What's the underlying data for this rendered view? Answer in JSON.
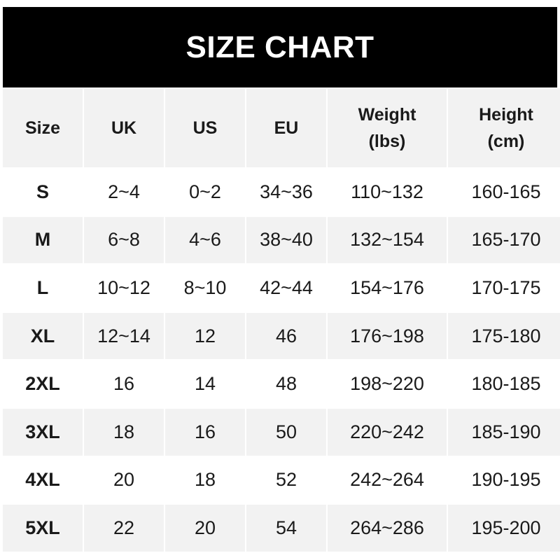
{
  "title": "SIZE CHART",
  "headers": [
    "Size",
    "UK",
    "US",
    "EU",
    "Weight\n(lbs)",
    "Height\n(cm)"
  ],
  "rows": [
    [
      "S",
      "2~4",
      "0~2",
      "34~36",
      "110~132",
      "160-165"
    ],
    [
      "M",
      "6~8",
      "4~6",
      "38~40",
      "132~154",
      "165-170"
    ],
    [
      "L",
      "10~12",
      "8~10",
      "42~44",
      "154~176",
      "170-175"
    ],
    [
      "XL",
      "12~14",
      "12",
      "46",
      "176~198",
      "175-180"
    ],
    [
      "2XL",
      "16",
      "14",
      "48",
      "198~220",
      "180-185"
    ],
    [
      "3XL",
      "18",
      "16",
      "50",
      "220~242",
      "185-190"
    ],
    [
      "4XL",
      "20",
      "18",
      "52",
      "242~264",
      "190-195"
    ],
    [
      "5XL",
      "22",
      "20",
      "54",
      "264~286",
      "195-200"
    ]
  ],
  "colors": {
    "header_bg": "#000000",
    "header_text": "#ffffff",
    "stripe": "#f2f2f2"
  }
}
